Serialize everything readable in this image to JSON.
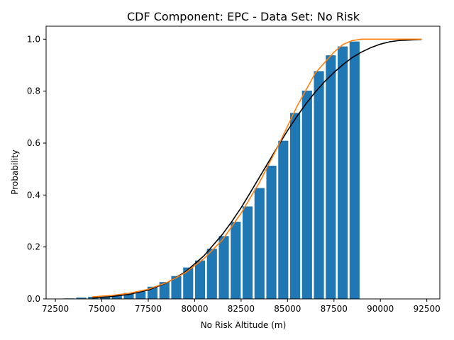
{
  "chart_data": {
    "type": "bar",
    "title": "CDF Component: EPC - Data Set: No Risk",
    "xlabel": "No Risk Altitude (m)",
    "ylabel": "Probability",
    "xlim": [
      72000,
      93200
    ],
    "ylim": [
      0,
      1.05
    ],
    "xticks": [
      72500,
      75000,
      77500,
      80000,
      82500,
      85000,
      87500,
      90000,
      92500
    ],
    "yticks": [
      0.0,
      0.2,
      0.4,
      0.6,
      0.8,
      1.0
    ],
    "ytick_labels": [
      "0.0",
      "0.2",
      "0.4",
      "0.6",
      "0.8",
      "1.0"
    ],
    "grid": false,
    "bar_color": "#1f77b4",
    "bar_width": 540,
    "bars": {
      "x": [
        73250,
        73890,
        74530,
        75170,
        75810,
        76450,
        77090,
        77730,
        78370,
        79010,
        79650,
        80290,
        80930,
        81570,
        82210,
        82850,
        83490,
        84130,
        84770,
        85410,
        86050,
        86690,
        87330,
        87970,
        88610
      ],
      "values": [
        0.002,
        0.005,
        0.008,
        0.011,
        0.015,
        0.023,
        0.029,
        0.047,
        0.065,
        0.088,
        0.121,
        0.148,
        0.193,
        0.242,
        0.297,
        0.356,
        0.427,
        0.513,
        0.609,
        0.716,
        0.802,
        0.877,
        0.938,
        0.972,
        0.991
      ]
    },
    "series": [
      {
        "color": "#000000",
        "x": [
          74500,
          75500,
          76500,
          77500,
          78500,
          79500,
          80500,
          81500,
          82000,
          82500,
          83000,
          83500,
          84000,
          84500,
          85000,
          85500,
          86000,
          86500,
          87000,
          87500,
          88000,
          88500,
          89000,
          89500,
          90000,
          90500,
          91000,
          92200
        ],
        "values": [
          0.004,
          0.009,
          0.018,
          0.034,
          0.062,
          0.104,
          0.166,
          0.249,
          0.298,
          0.351,
          0.41,
          0.47,
          0.53,
          0.59,
          0.648,
          0.702,
          0.752,
          0.797,
          0.837,
          0.872,
          0.903,
          0.93,
          0.951,
          0.968,
          0.981,
          0.99,
          0.995,
          0.999
        ]
      },
      {
        "color": "#ff7f0e",
        "x": [
          74500,
          75500,
          76500,
          77500,
          78500,
          79500,
          80500,
          81500,
          82500,
          83500,
          84500,
          85500,
          86500,
          87500,
          88000,
          88500,
          89000,
          89500,
          90000,
          92200
        ],
        "values": [
          0.008,
          0.013,
          0.022,
          0.037,
          0.063,
          0.101,
          0.155,
          0.228,
          0.33,
          0.45,
          0.59,
          0.74,
          0.87,
          0.95,
          0.98,
          0.995,
          1.0,
          1.0,
          1.0,
          1.0
        ]
      }
    ]
  }
}
